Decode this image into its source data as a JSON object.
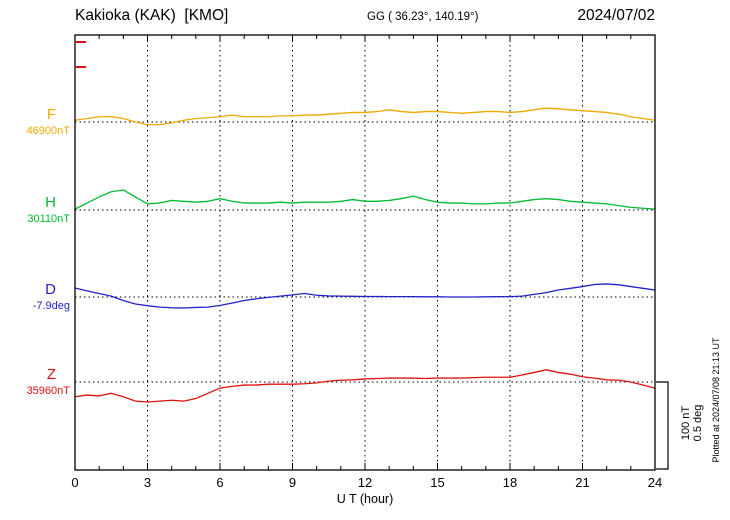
{
  "header": {
    "station": "Kakioka (KAK)  [KMO]",
    "coordinates": "GG ( 36.23°, 140.19°)",
    "date": "2024/07/02"
  },
  "x_axis": {
    "label": "U T (hour)",
    "tick_hours": [
      0,
      3,
      6,
      9,
      12,
      15,
      18,
      21,
      24
    ],
    "tick_labels": [
      "0",
      "3",
      "6",
      "9",
      "12",
      "15",
      "18",
      "21",
      "24"
    ],
    "grid_hours": [
      3,
      6,
      9,
      12,
      15,
      18,
      21
    ],
    "minor_tick_step_hours": 1
  },
  "scale_bar": {
    "line1": "100 nT",
    "line2": "0.5 deg"
  },
  "footer_note": "Plotted at 2024/07/08 21:13 UT",
  "colors": {
    "axis": "#000000",
    "background": "#ffffff",
    "left_axis_marker": "#e01010"
  },
  "chart_data": {
    "type": "line",
    "title": "Kakioka (KAK) [KMO] magnetogram 2024/07/02",
    "xlabel": "U T (hour)",
    "x_range": [
      0,
      24
    ],
    "grid": "dotted vertical lines every 3 hours; dotted horizontal baseline per trace",
    "scale": {
      "nT_per_div": 100,
      "deg_per_div": 0.5
    },
    "x": [
      0,
      0.5,
      1,
      1.5,
      2,
      2.5,
      3,
      3.5,
      4,
      4.5,
      5,
      5.5,
      6,
      6.5,
      7,
      7.5,
      8,
      8.5,
      9,
      9.5,
      10,
      10.5,
      11,
      11.5,
      12,
      12.5,
      13,
      13.5,
      14,
      14.5,
      15,
      15.5,
      16,
      16.5,
      17,
      17.5,
      18,
      18.5,
      19,
      19.5,
      20,
      20.5,
      21,
      21.5,
      22,
      22.5,
      23,
      23.5,
      24
    ],
    "series": [
      {
        "name": "F",
        "baseline_label": "46900nT",
        "baseline_value": 46900,
        "unit": "nT",
        "color": "#f0a800",
        "offsets": [
          2,
          4,
          6,
          6,
          4,
          0,
          -3,
          -3,
          -1,
          2,
          4,
          5,
          6,
          8,
          6,
          6,
          6,
          7,
          7,
          8,
          8,
          9,
          10,
          11,
          11,
          12,
          14,
          12,
          11,
          12,
          12,
          11,
          10,
          11,
          12,
          12,
          11,
          12,
          14,
          16,
          15,
          14,
          13,
          12,
          11,
          9,
          6,
          4,
          2
        ]
      },
      {
        "name": "H",
        "baseline_label": "30110nT",
        "baseline_value": 30110,
        "unit": "nT",
        "color": "#00bb33",
        "offsets": [
          1,
          8,
          15,
          21,
          23,
          15,
          7,
          8,
          11,
          10,
          9,
          10,
          13,
          10,
          8,
          8,
          8,
          9,
          8,
          9,
          9,
          9,
          10,
          12,
          10,
          10,
          11,
          13,
          16,
          12,
          9,
          8,
          8,
          7,
          7,
          8,
          8,
          10,
          12,
          13,
          12,
          10,
          9,
          8,
          7,
          5,
          3,
          2,
          1
        ]
      },
      {
        "name": "D",
        "baseline_label": "-7.9deg",
        "baseline_value": -7.9,
        "unit": "deg",
        "color": "#2222cc",
        "offsets": [
          0.052,
          0.035,
          0.02,
          0.005,
          -0.02,
          -0.04,
          -0.05,
          -0.058,
          -0.062,
          -0.063,
          -0.06,
          -0.058,
          -0.048,
          -0.035,
          -0.02,
          -0.01,
          -0.002,
          0.005,
          0.012,
          0.02,
          0.01,
          0.006,
          0.005,
          0.004,
          0.003,
          0.003,
          0.002,
          0.002,
          0.002,
          0.001,
          0.001,
          0,
          0,
          0,
          0.001,
          0.002,
          0.002,
          0.005,
          0.015,
          0.025,
          0.04,
          0.05,
          0.06,
          0.072,
          0.075,
          0.07,
          0.06,
          0.05,
          0.04
        ]
      },
      {
        "name": "Z",
        "baseline_label": "35960nT",
        "baseline_value": 35960,
        "unit": "nT",
        "color": "#e01010",
        "offsets": [
          -17,
          -15,
          -16,
          -13,
          -17,
          -22,
          -23,
          -22,
          -21,
          -22,
          -19,
          -13,
          -7,
          -5,
          -3.5,
          -3.5,
          -2.5,
          -2.5,
          -2.5,
          -2,
          -1,
          1,
          2,
          2.5,
          3.5,
          4,
          4.5,
          4.5,
          4.5,
          4,
          4.5,
          4.5,
          4.5,
          5,
          5.5,
          5.5,
          5.5,
          8,
          11,
          14,
          11,
          9,
          6,
          4.5,
          2.5,
          2,
          0,
          -3.5,
          -7
        ]
      }
    ]
  }
}
